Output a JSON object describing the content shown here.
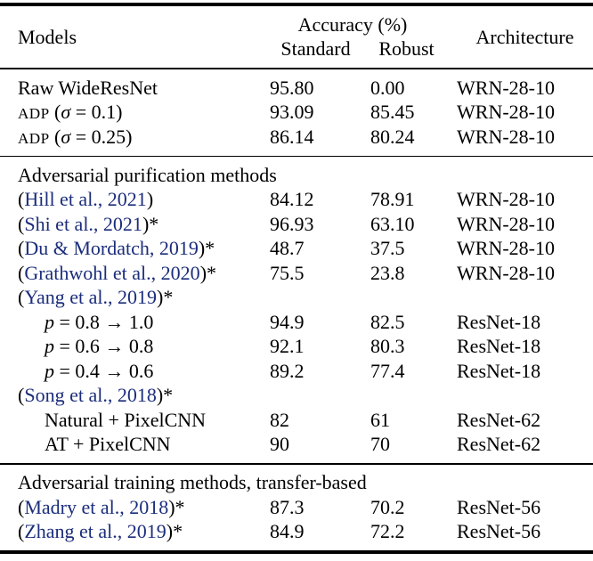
{
  "colors": {
    "background": "#ffffff",
    "text": "#000000",
    "citation_link": "#1b2d7b",
    "rule": "#000000"
  },
  "header": {
    "models": "Models",
    "accuracy_group": "Accuracy (%)",
    "standard": "Standard",
    "robust": "Robust",
    "architecture": "Architecture"
  },
  "rows": [
    {
      "type": "plain",
      "model": "Raw WideResNet",
      "standard": "95.80",
      "robust": "0.00",
      "arch": "WRN-28-10"
    },
    {
      "type": "adp",
      "sc": "ADP",
      "pre": " (",
      "sigma": "σ",
      "post": " = 0.1)",
      "standard": "93.09",
      "robust": "85.45",
      "arch": "WRN-28-10"
    },
    {
      "type": "adp",
      "sc": "ADP",
      "pre": " (",
      "sigma": "σ",
      "post": " = 0.25)",
      "standard": "86.14",
      "robust": "80.24",
      "arch": "WRN-28-10"
    },
    {
      "type": "section",
      "model": "Adversarial purification methods"
    },
    {
      "type": "cite",
      "open": "(",
      "cite": "Hill et al., 2021",
      "close": ")",
      "standard": "84.12",
      "robust": "78.91",
      "arch": "WRN-28-10"
    },
    {
      "type": "cite",
      "open": "(",
      "cite": "Shi et al., 2021",
      "close": ")*",
      "standard": "96.93",
      "robust": "63.10",
      "arch": "WRN-28-10"
    },
    {
      "type": "cite",
      "open": "(",
      "cite": "Du & Mordatch, 2019",
      "close": ")*",
      "standard": "48.7",
      "robust": "37.5",
      "arch": "WRN-28-10"
    },
    {
      "type": "cite",
      "open": "(",
      "cite": "Grathwohl et al., 2020",
      "close": ")*",
      "standard": "75.5",
      "robust": "23.8",
      "arch": "WRN-28-10"
    },
    {
      "type": "cite",
      "open": "(",
      "cite": "Yang et al., 2019",
      "close": ")*"
    },
    {
      "type": "math",
      "p": "p",
      "rest": " = 0.8 → 1.0",
      "standard": "94.9",
      "robust": "82.5",
      "arch": "ResNet-18"
    },
    {
      "type": "math",
      "p": "p",
      "rest": " = 0.6 → 0.8",
      "standard": "92.1",
      "robust": "80.3",
      "arch": "ResNet-18"
    },
    {
      "type": "math",
      "p": "p",
      "rest": " = 0.4 → 0.6",
      "standard": "89.2",
      "robust": "77.4",
      "arch": "ResNet-18"
    },
    {
      "type": "cite",
      "open": "(",
      "cite": "Song et al., 2018",
      "close": ")*"
    },
    {
      "type": "indent",
      "model": "Natural + PixelCNN",
      "standard": "82",
      "robust": "61",
      "arch": "ResNet-62"
    },
    {
      "type": "indent",
      "model": "AT + PixelCNN",
      "standard": "90",
      "robust": "70",
      "arch": "ResNet-62"
    },
    {
      "type": "section",
      "model": "Adversarial training methods, transfer-based"
    },
    {
      "type": "cite",
      "open": "(",
      "cite": "Madry et al., 2018",
      "close": ")*",
      "standard": "87.3",
      "robust": "70.2",
      "arch": "ResNet-56"
    },
    {
      "type": "cite",
      "open": "(",
      "cite": "Zhang et al., 2019",
      "close": ")*",
      "standard": "84.9",
      "robust": "72.2",
      "arch": "ResNet-56"
    }
  ]
}
